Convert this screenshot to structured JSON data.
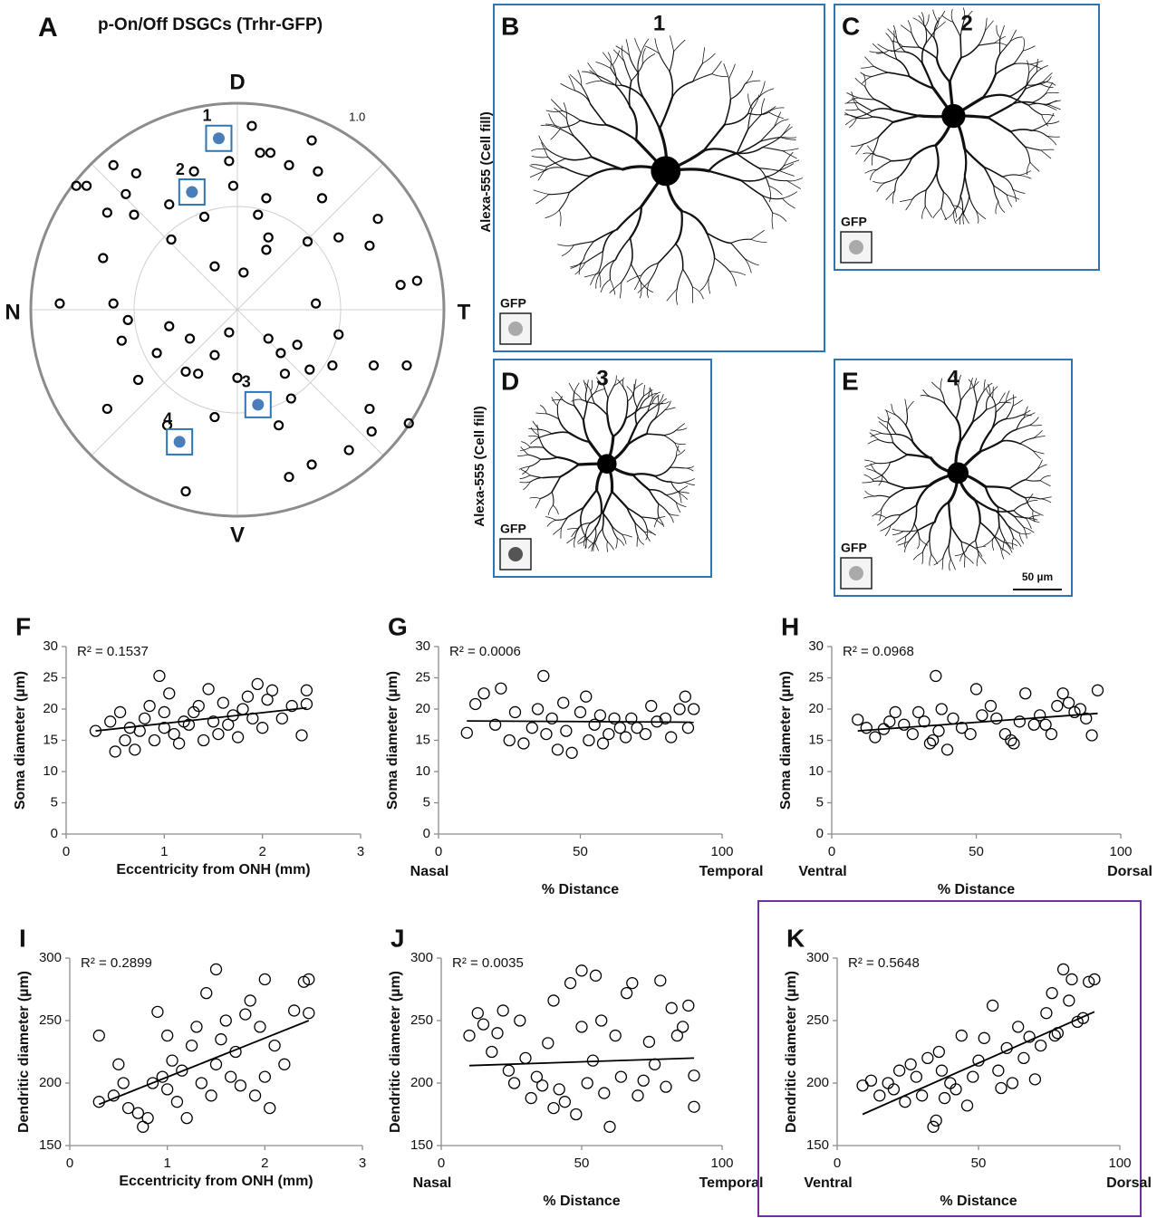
{
  "chart_data": [
    {
      "type": "polar",
      "panel": "A",
      "title": "p-On/Off DSGCs (Trhr-GFP)",
      "directions": [
        "D",
        "T",
        "V",
        "N"
      ],
      "rlim": [
        0,
        1
      ],
      "rticks": [
        {
          "value": 1,
          "label": "1.0"
        }
      ],
      "color": "#000000",
      "x": [
        0.07,
        -0.04,
        -0.21,
        0.11,
        0.16,
        0.36,
        0.25,
        0.39,
        -0.6,
        -0.49,
        -0.78,
        -0.73,
        -0.54,
        -0.33,
        -0.02,
        0.14,
        -0.63,
        -0.5,
        -0.16,
        0.1,
        0.41,
        0.68,
        -0.32,
        0.15,
        0.14,
        0.34,
        0.49,
        0.64,
        -0.65,
        -0.11,
        0.03,
        0.79,
        0.87,
        -0.86,
        -0.6,
        0.38,
        -0.53,
        -0.33,
        -0.04,
        0.49,
        -0.56,
        -0.23,
        0.15,
        0.29,
        -0.39,
        -0.11,
        -0.25,
        -0.48,
        -0.19,
        0.21,
        0.23,
        0.35,
        0.46,
        0.66,
        0.82,
        0.26,
        -0.63,
        -0.11,
        0.2,
        0.64,
        0.83,
        0.65,
        0.54,
        0.36,
        0.25,
        -0.25,
        0.0,
        -0.34
      ],
      "values": [
        0.89,
        0.72,
        0.67,
        0.76,
        0.76,
        0.82,
        0.7,
        0.67,
        0.7,
        0.66,
        0.6,
        0.6,
        0.56,
        0.51,
        0.6,
        0.54,
        0.47,
        0.46,
        0.45,
        0.46,
        0.54,
        0.44,
        0.34,
        0.35,
        0.29,
        0.33,
        0.35,
        0.31,
        0.25,
        0.21,
        0.18,
        0.12,
        0.14,
        0.03,
        0.03,
        0.03,
        -0.05,
        -0.08,
        -0.11,
        -0.12,
        -0.15,
        -0.14,
        -0.14,
        -0.17,
        -0.21,
        -0.22,
        -0.3,
        -0.34,
        -0.31,
        -0.21,
        -0.31,
        -0.29,
        -0.27,
        -0.27,
        -0.27,
        -0.43,
        -0.48,
        -0.52,
        -0.56,
        -0.48,
        -0.55,
        -0.59,
        -0.68,
        -0.75,
        -0.81,
        -0.88,
        -0.33,
        -0.56
      ],
      "highlights": {
        "labels": [
          "1",
          "2",
          "3",
          "4"
        ],
        "x": [
          -0.09,
          -0.22,
          0.1,
          -0.28
        ],
        "values": [
          0.83,
          0.57,
          -0.46,
          -0.64
        ],
        "color": "#4a7ebb"
      }
    },
    {
      "type": "scatter",
      "panel": "F",
      "annotation": "R² = 0.1537",
      "xlabel": "Eccentricity from ONH (mm)",
      "ylabel": "Soma diameter (µm)",
      "color": "#000000",
      "xlim": [
        0,
        3
      ],
      "xticks": [
        0,
        1,
        2,
        3
      ],
      "ylim": [
        0,
        30
      ],
      "yticks": [
        0,
        5,
        10,
        15,
        20,
        25,
        30
      ],
      "x": [
        0.3,
        0.45,
        0.5,
        0.55,
        0.6,
        0.65,
        0.7,
        0.75,
        0.8,
        0.85,
        0.9,
        0.95,
        1.0,
        1.0,
        1.05,
        1.1,
        1.15,
        1.2,
        1.25,
        1.3,
        1.35,
        1.4,
        1.45,
        1.5,
        1.55,
        1.6,
        1.65,
        1.7,
        1.75,
        1.8,
        1.85,
        1.9,
        1.95,
        2.0,
        2.05,
        2.1,
        2.2,
        2.3,
        2.4,
        2.45,
        2.45
      ],
      "values": [
        16.5,
        18,
        13.2,
        19.5,
        15,
        17,
        13.5,
        16.5,
        18.5,
        20.5,
        15,
        25.3,
        19.5,
        17,
        22.5,
        16,
        14.5,
        18,
        17.5,
        19.5,
        20.5,
        15,
        23.2,
        18,
        16,
        21,
        17.5,
        19,
        15.5,
        20,
        22,
        18.5,
        24,
        17,
        21.5,
        23,
        18.5,
        20.5,
        15.8,
        23,
        20.8
      ],
      "trendline": {
        "x": [
          0.3,
          2.45
        ],
        "values": [
          16.5,
          20.2
        ]
      }
    },
    {
      "type": "scatter",
      "panel": "G",
      "annotation": "R² = 0.0006",
      "xlabel": "% Distance",
      "x_end_labels": [
        "Nasal",
        "Temporal"
      ],
      "ylabel": "Soma diameter (µm)",
      "color": "#000000",
      "xlim": [
        0,
        100
      ],
      "xticks": [
        0,
        50,
        100
      ],
      "ylim": [
        0,
        30
      ],
      "yticks": [
        0,
        5,
        10,
        15,
        20,
        25,
        30
      ],
      "x": [
        10,
        13,
        16,
        20,
        22,
        25,
        27,
        30,
        33,
        35,
        37,
        38,
        40,
        42,
        44,
        45,
        47,
        50,
        52,
        53,
        55,
        57,
        58,
        60,
        62,
        64,
        66,
        68,
        70,
        73,
        75,
        77,
        80,
        82,
        85,
        87,
        88,
        90
      ],
      "values": [
        16.2,
        20.8,
        22.5,
        17.5,
        23.3,
        15,
        19.5,
        14.5,
        17,
        20,
        25.3,
        16,
        18.5,
        13.5,
        21,
        16.5,
        13,
        19.5,
        22,
        15,
        17.5,
        19,
        14.5,
        16,
        18.5,
        17,
        15.5,
        18.5,
        17,
        16,
        20.5,
        18,
        18.5,
        15.5,
        20,
        22,
        17,
        20
      ],
      "trendline": {
        "x": [
          10,
          90
        ],
        "values": [
          18.1,
          17.9
        ]
      }
    },
    {
      "type": "scatter",
      "panel": "H",
      "annotation": "R² = 0.0968",
      "xlabel": "% Distance",
      "x_end_labels": [
        "Ventral",
        "Dorsal"
      ],
      "ylabel": "Soma diameter (µm)",
      "color": "#000000",
      "xlim": [
        0,
        100
      ],
      "xticks": [
        0,
        50,
        100
      ],
      "ylim": [
        0,
        30
      ],
      "yticks": [
        0,
        5,
        10,
        15,
        20,
        25,
        30
      ],
      "x": [
        9,
        12,
        15,
        18,
        20,
        22,
        25,
        28,
        30,
        32,
        34,
        35,
        36,
        37,
        38,
        40,
        42,
        45,
        48,
        50,
        52,
        55,
        57,
        60,
        62,
        63,
        65,
        67,
        70,
        72,
        74,
        76,
        78,
        80,
        82,
        84,
        86,
        88,
        90,
        92
      ],
      "values": [
        18.3,
        17,
        15.5,
        16.8,
        18,
        19.5,
        17.5,
        16,
        19.5,
        18,
        14.5,
        15,
        25.3,
        16.5,
        20,
        13.5,
        18.5,
        17,
        16,
        23.2,
        19,
        20.5,
        18.5,
        16,
        15,
        14.5,
        18,
        22.5,
        17.5,
        19,
        17.5,
        16,
        20.5,
        22.5,
        21,
        19.5,
        20,
        18.5,
        15.8,
        23
      ],
      "trendline": {
        "x": [
          9,
          92
        ],
        "values": [
          16.5,
          19.3
        ]
      }
    },
    {
      "type": "scatter",
      "panel": "I",
      "annotation": "R² = 0.2899",
      "xlabel": "Eccentricity from ONH (mm)",
      "ylabel": "Dendritic diameter (µm)",
      "color": "#000000",
      "xlim": [
        0,
        3
      ],
      "xticks": [
        0,
        1,
        2,
        3
      ],
      "ylim": [
        150,
        300
      ],
      "yticks": [
        150,
        200,
        250,
        300
      ],
      "x": [
        0.3,
        0.3,
        0.45,
        0.5,
        0.55,
        0.6,
        0.7,
        0.75,
        0.8,
        0.85,
        0.9,
        0.95,
        1.0,
        1.0,
        1.05,
        1.1,
        1.15,
        1.2,
        1.25,
        1.3,
        1.35,
        1.4,
        1.45,
        1.5,
        1.5,
        1.55,
        1.6,
        1.65,
        1.7,
        1.75,
        1.8,
        1.85,
        1.9,
        1.95,
        2.0,
        2.0,
        2.05,
        2.1,
        2.2,
        2.3,
        2.4,
        2.45,
        2.45
      ],
      "values": [
        238,
        185,
        190,
        215,
        200,
        180,
        176,
        165,
        172,
        200,
        257,
        205,
        195,
        238,
        218,
        185,
        210,
        172,
        230,
        245,
        200,
        272,
        190,
        291,
        215,
        235,
        250,
        205,
        225,
        198,
        255,
        266,
        190,
        245,
        283,
        205,
        180,
        230,
        215,
        258,
        281,
        283,
        256
      ],
      "trendline": {
        "x": [
          0.3,
          2.45
        ],
        "values": [
          183,
          250
        ]
      }
    },
    {
      "type": "scatter",
      "panel": "J",
      "annotation": "R² = 0.0035",
      "xlabel": "% Distance",
      "x_end_labels": [
        "Nasal",
        "Temporal"
      ],
      "ylabel": "Dendritic diameter (µm)",
      "color": "#000000",
      "xlim": [
        0,
        100
      ],
      "xticks": [
        0,
        50,
        100
      ],
      "ylim": [
        150,
        300
      ],
      "yticks": [
        150,
        200,
        250,
        300
      ],
      "x": [
        10,
        13,
        15,
        18,
        20,
        22,
        24,
        26,
        28,
        30,
        32,
        34,
        36,
        38,
        40,
        40,
        42,
        44,
        46,
        48,
        50,
        50,
        52,
        54,
        55,
        57,
        58,
        60,
        62,
        64,
        66,
        68,
        70,
        72,
        74,
        76,
        78,
        80,
        82,
        84,
        86,
        88,
        90,
        90
      ],
      "values": [
        238,
        256,
        247,
        225,
        240,
        258,
        210,
        200,
        250,
        220,
        188,
        205,
        198,
        232,
        266,
        180,
        195,
        185,
        280,
        175,
        290,
        245,
        200,
        218,
        286,
        250,
        192,
        165,
        238,
        205,
        272,
        280,
        190,
        202,
        233,
        215,
        282,
        197,
        260,
        238,
        245,
        262,
        181,
        206
      ],
      "trendline": {
        "x": [
          10,
          90
        ],
        "values": [
          214,
          220
        ]
      }
    },
    {
      "type": "scatter",
      "panel": "K",
      "annotation": "R² = 0.5648",
      "xlabel": "% Distance",
      "x_end_labels": [
        "Ventral",
        "Dorsal"
      ],
      "ylabel": "Dendritic diameter (µm)",
      "color": "#000000",
      "frame_color": "#7030a0",
      "xlim": [
        0,
        100
      ],
      "xticks": [
        0,
        50,
        100
      ],
      "ylim": [
        150,
        300
      ],
      "yticks": [
        150,
        200,
        250,
        300
      ],
      "x": [
        9,
        12,
        15,
        18,
        20,
        22,
        24,
        26,
        28,
        30,
        32,
        34,
        35,
        36,
        37,
        38,
        40,
        42,
        44,
        46,
        48,
        50,
        52,
        55,
        57,
        58,
        60,
        62,
        64,
        66,
        68,
        70,
        72,
        74,
        76,
        77,
        78,
        80,
        82,
        83,
        85,
        87,
        89,
        91
      ],
      "values": [
        198,
        202,
        190,
        200,
        195,
        210,
        185,
        215,
        205,
        190,
        220,
        165,
        170,
        225,
        210,
        188,
        200,
        195,
        238,
        182,
        205,
        218,
        236,
        262,
        210,
        196,
        228,
        200,
        245,
        220,
        237,
        203,
        230,
        256,
        272,
        238,
        240,
        291,
        266,
        283,
        249,
        252,
        281,
        283
      ],
      "trendline": {
        "x": [
          9,
          91
        ],
        "values": [
          175,
          257
        ]
      }
    }
  ],
  "images": [
    {
      "panel": "B",
      "label": "1",
      "inset": "GFP"
    },
    {
      "panel": "C",
      "label": "2",
      "inset": "GFP"
    },
    {
      "panel": "D",
      "label": "3",
      "inset": "GFP"
    },
    {
      "panel": "E",
      "label": "4",
      "inset": "GFP"
    }
  ],
  "stain_label": "Alexa-555 (Cell fill)",
  "scale_bar": "50 µm"
}
